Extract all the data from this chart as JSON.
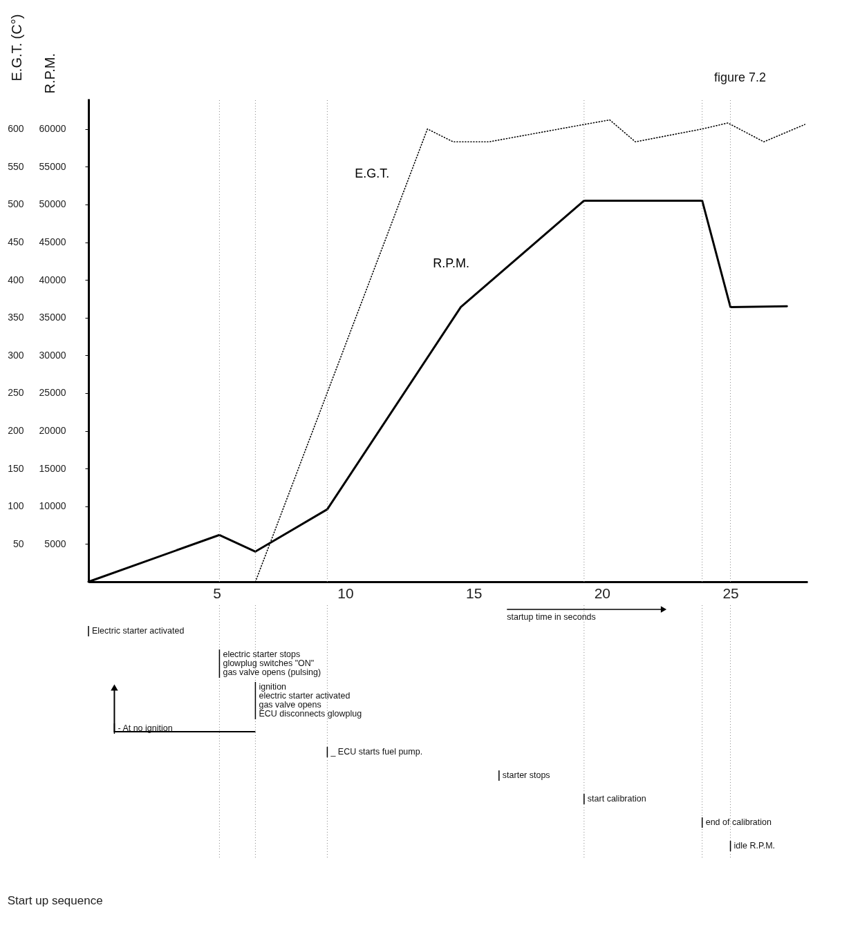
{
  "chart_data": {
    "type": "line",
    "title": "Start up sequence",
    "xlabel": "startup time in seconds",
    "ylabel": "R.P.M.",
    "y2label": "E.G.T. (C°)",
    "xlim": [
      0,
      28
    ],
    "xticks": [
      5,
      10,
      15,
      20,
      25
    ],
    "ylim": [
      0,
      64000
    ],
    "yticks": [
      5000,
      10000,
      15000,
      20000,
      25000,
      30000,
      35000,
      40000,
      45000,
      50000,
      55000,
      60000
    ],
    "y2lim": [
      0,
      640
    ],
    "y2ticks": [
      50,
      100,
      150,
      200,
      250,
      300,
      350,
      400,
      450,
      500,
      550,
      600
    ],
    "series": [
      {
        "name": "R.P.M.",
        "color": "#000000",
        "line_style": "solid",
        "x": [
          0,
          5.1,
          6.5,
          9.3,
          14.5,
          19.3,
          23.9,
          25.0,
          27.2
        ],
        "values": [
          0,
          6200,
          4000,
          9600,
          36400,
          50500,
          50500,
          36400,
          36500
        ]
      },
      {
        "name": "E.G.T.",
        "color": "#000000",
        "axis": "y2",
        "line_style": "dotted",
        "x": [
          6.5,
          13.2,
          14.2,
          15.6,
          19.3,
          20.3,
          21.3,
          23.9,
          24.9,
          26.3,
          27.9
        ],
        "values": [
          0,
          600,
          583,
          583,
          606,
          612,
          583,
          600,
          608,
          583,
          606
        ]
      }
    ],
    "ref_lines": [
      {
        "axis": "x",
        "value": 5.1,
        "line_style": "dotted"
      },
      {
        "axis": "x",
        "value": 6.5,
        "line_style": "dotted"
      },
      {
        "axis": "x",
        "value": 9.3,
        "line_style": "dotted"
      },
      {
        "axis": "x",
        "value": 19.3,
        "line_style": "dotted"
      },
      {
        "axis": "x",
        "value": 23.9,
        "line_style": "dotted"
      },
      {
        "axis": "x",
        "value": 25.0,
        "line_style": "dotted"
      }
    ],
    "annotations": [
      "figure 7.2",
      "Electric starter activated",
      "electric starter stops\nglowplug switches \"ON\"\ngas valve opens (pulsing)",
      "ignition\nelectric starter activated\ngas valve opens\nECU disconnects glowplug",
      "- At no ignition",
      "_ ECU starts fuel pump.",
      "starter stops",
      "start calibration",
      "end of calibration",
      "idle R.P.M."
    ],
    "grid": false,
    "marker": "none"
  }
}
